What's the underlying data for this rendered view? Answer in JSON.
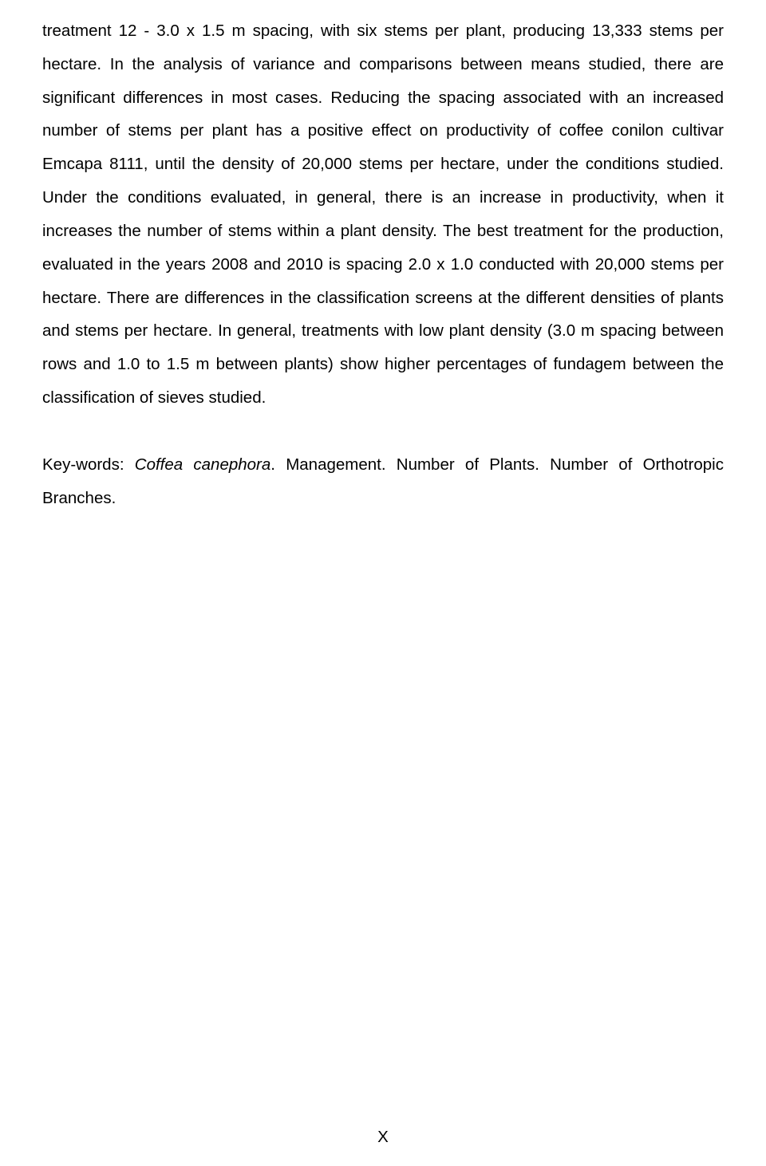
{
  "body_paragraph": "treatment 12 - 3.0 x 1.5 m spacing, with six stems per plant, producing 13,333 stems per hectare. In the analysis of variance and comparisons between means studied, there are significant differences in most cases. Reducing the spacing associated with an increased number of stems per plant has a positive effect on productivity of coffee conilon cultivar Emcapa 8111, until the density of 20,000 stems per hectare, under the conditions studied. Under the conditions evaluated, in general, there is an increase in productivity, when it increases the number of stems within a plant density. The best treatment for the production, evaluated in the years 2008 and 2010 is spacing 2.0 x 1.0 conducted with 20,000 stems per hectare. There are differences in the classification screens at the different densities of plants and stems per hectare. In general, treatments with low plant density (3.0 m spacing between rows and 1.0 to 1.5 m between plants) show higher percentages of fundagem between the classification of sieves studied.",
  "keywords_label": "Key-words: ",
  "keywords_italic": "Coffea canephora",
  "keywords_rest": ". Management. Number of Plants. Number of Orthotropic Branches.",
  "page_number": "X",
  "text_color": "#000000",
  "background_color": "#ffffff",
  "font_size": 20.5,
  "line_height": 2.04
}
